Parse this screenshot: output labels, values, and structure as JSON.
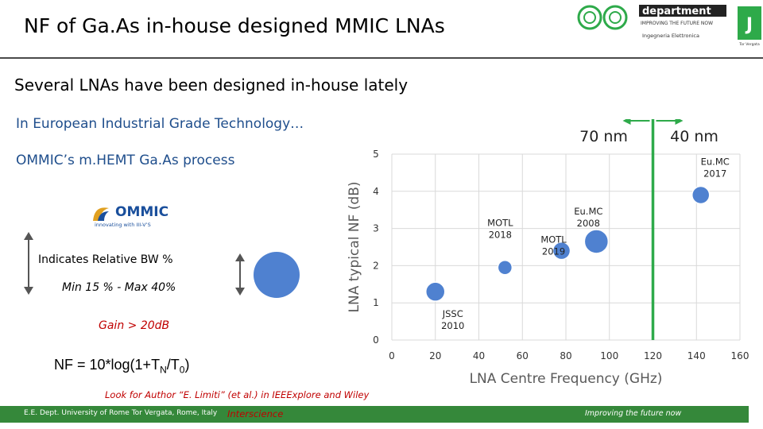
{
  "header": {
    "title": "NF of Ga.As in-house designed MMIC LNAs",
    "logo": {
      "word": "department",
      "tagline": "IMPROVING THE FUTURE NOW",
      "sub": "Ingegneria Elettronica",
      "badge": "Tor Vergata"
    }
  },
  "body": {
    "subtitle": "Several LNAs have been designed in-house lately",
    "line1": "In European Industrial Grade Technology…",
    "line2": "OMMIC’s m.HEMT Ga.As process",
    "ommic_logo": {
      "name": "OMMIC",
      "tagline": "innovating with III-V’S"
    },
    "bw_label": "Indicates Relative BW %",
    "minmax": "Min 15 % - Max 40%",
    "gain": "Gain > 20dB",
    "nf_eq": {
      "prefix": "NF = 10*log(1+T",
      "sub1": "N",
      "mid": "/T",
      "sub2": "0",
      "suffix": ")"
    },
    "note": "Look for Author “E. Limiti” (et al.) in IEEExplore and Wiley"
  },
  "colors": {
    "accent_blue": "#1f4e8c",
    "bubble": "#4f81d0",
    "green": "#2eaa4a",
    "footer": "#35883a",
    "red": "#c00000"
  },
  "chart_data": {
    "type": "scatter",
    "xlabel": "LNA Centre Frequency (GHz)",
    "ylabel": "LNA typical NF (dB)",
    "xlim": [
      0,
      160
    ],
    "ylim": [
      0,
      5
    ],
    "xticks": [
      "0",
      "20",
      "40",
      "60",
      "80",
      "100",
      "120",
      "140",
      "160"
    ],
    "yticks": [
      "0",
      "1",
      "2",
      "3",
      "4",
      "5"
    ],
    "grid": true,
    "points": [
      {
        "label": "JSSC 2010",
        "x": 20,
        "y": 1.3,
        "bw": 24
      },
      {
        "label": "MOTL 2018",
        "x": 52,
        "y": 1.95,
        "bw": 18
      },
      {
        "label": "MOTL 2019",
        "x": 78,
        "y": 2.4,
        "bw": 22
      },
      {
        "label": "Eu.MC 2008",
        "x": 94,
        "y": 2.65,
        "bw": 30
      },
      {
        "label": "Eu.MC 2017",
        "x": 142,
        "y": 3.9,
        "bw": 22
      }
    ],
    "boundary": {
      "x": 120,
      "left_label": "70 nm",
      "right_label": "40 nm"
    }
  },
  "footer": {
    "left": "E.E. Dept. University of Rome Tor Vergata, Rome, Italy",
    "overlay": "Interscience",
    "right": "Improving the future now"
  }
}
